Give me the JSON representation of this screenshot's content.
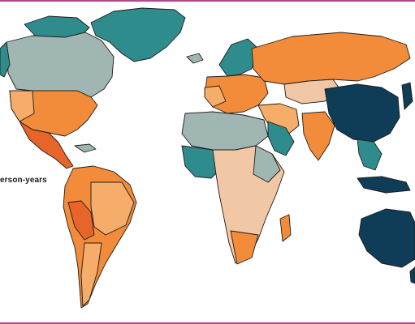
{
  "map": {
    "legend": {
      "label": "erson-years"
    },
    "colors": {
      "dark_navy": "#0f3d57",
      "teal": "#2f8c8c",
      "grey_teal": "#9fb6b2",
      "peach": "#f2c7a5",
      "light_orange": "#f6ad6a",
      "orange": "#f28c3a",
      "deep_orange": "#e8652a",
      "border": "#1c1c1c",
      "frame_accent": "#b5478b"
    },
    "regions": [
      {
        "name": "greenland",
        "color_class": "teal"
      },
      {
        "name": "canada",
        "color_class": "grey_teal"
      },
      {
        "name": "usa",
        "color_class": "orange"
      },
      {
        "name": "mexico",
        "color_class": "deep_orange"
      },
      {
        "name": "south-america",
        "color_class": "orange"
      },
      {
        "name": "europe",
        "color_class": "orange"
      },
      {
        "name": "russia",
        "color_class": "orange"
      },
      {
        "name": "north-africa",
        "color_class": "grey_teal"
      },
      {
        "name": "sub-saharan-africa",
        "color_class": "peach"
      },
      {
        "name": "middle-east",
        "color_class": "teal"
      },
      {
        "name": "india",
        "color_class": "orange"
      },
      {
        "name": "china",
        "color_class": "dark_navy"
      },
      {
        "name": "southeast-asia",
        "color_class": "teal"
      },
      {
        "name": "australia",
        "color_class": "dark_navy"
      }
    ]
  }
}
